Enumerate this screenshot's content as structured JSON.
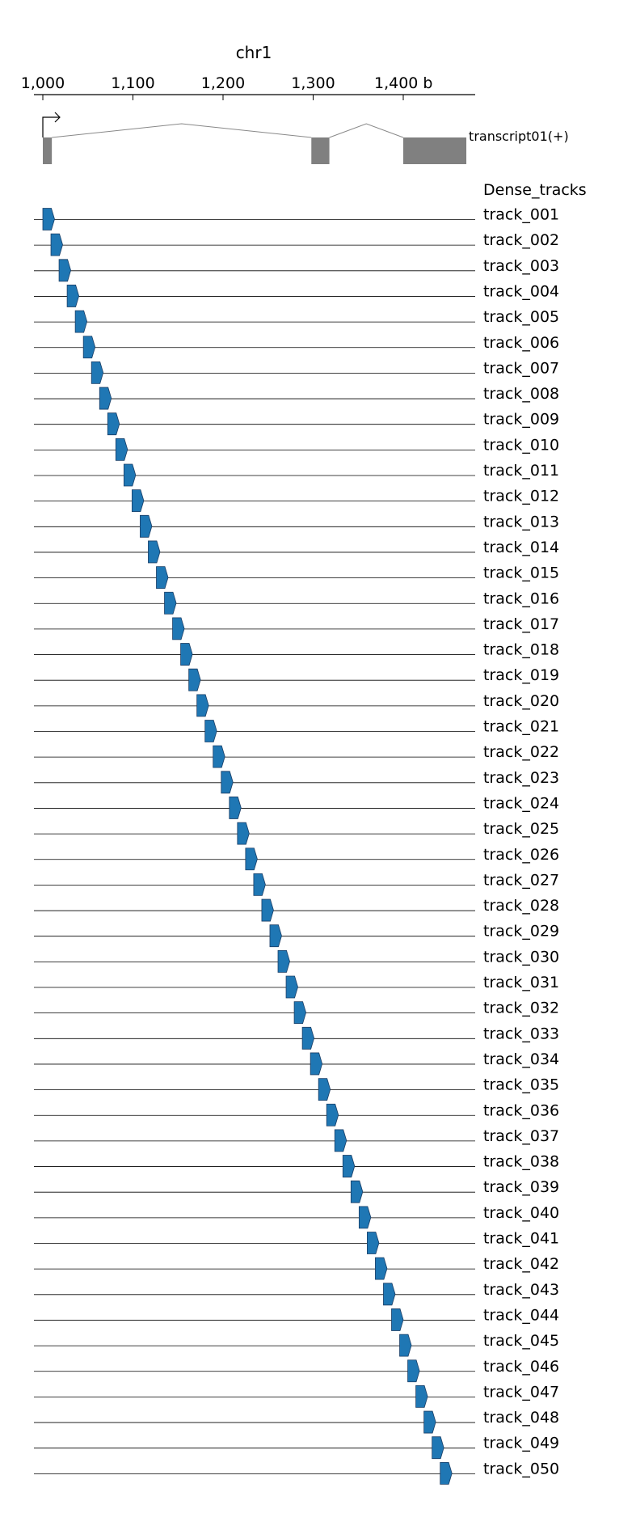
{
  "chromosome": "chr1",
  "axis": {
    "ticks": [
      {
        "pos": 1000,
        "label": "1,000"
      },
      {
        "pos": 1100,
        "label": "1,100"
      },
      {
        "pos": 1200,
        "label": "1,200"
      },
      {
        "pos": 1300,
        "label": "1,300"
      },
      {
        "pos": 1400,
        "label": "1,400 b"
      }
    ],
    "range": [
      990,
      1480
    ]
  },
  "transcript": {
    "name": "transcript01(+)",
    "strand": "+",
    "exons": [
      [
        1000,
        1010
      ],
      [
        1298,
        1318
      ],
      [
        1400,
        1470
      ]
    ]
  },
  "tracks_title": "Dense_tracks",
  "feature_color": "#1f77b4",
  "track_feature_length": 13,
  "tracks": [
    {
      "label": "track_001",
      "start": 1000
    },
    {
      "label": "track_002",
      "start": 1009
    },
    {
      "label": "track_003",
      "start": 1018
    },
    {
      "label": "track_004",
      "start": 1027
    },
    {
      "label": "track_005",
      "start": 1036
    },
    {
      "label": "track_006",
      "start": 1045
    },
    {
      "label": "track_007",
      "start": 1054
    },
    {
      "label": "track_008",
      "start": 1063
    },
    {
      "label": "track_009",
      "start": 1072
    },
    {
      "label": "track_010",
      "start": 1081
    },
    {
      "label": "track_011",
      "start": 1090
    },
    {
      "label": "track_012",
      "start": 1099
    },
    {
      "label": "track_013",
      "start": 1108
    },
    {
      "label": "track_014",
      "start": 1117
    },
    {
      "label": "track_015",
      "start": 1126
    },
    {
      "label": "track_016",
      "start": 1135
    },
    {
      "label": "track_017",
      "start": 1144
    },
    {
      "label": "track_018",
      "start": 1153
    },
    {
      "label": "track_019",
      "start": 1162
    },
    {
      "label": "track_020",
      "start": 1171
    },
    {
      "label": "track_021",
      "start": 1180
    },
    {
      "label": "track_022",
      "start": 1189
    },
    {
      "label": "track_023",
      "start": 1198
    },
    {
      "label": "track_024",
      "start": 1207
    },
    {
      "label": "track_025",
      "start": 1216
    },
    {
      "label": "track_026",
      "start": 1225
    },
    {
      "label": "track_027",
      "start": 1234
    },
    {
      "label": "track_028",
      "start": 1243
    },
    {
      "label": "track_029",
      "start": 1252
    },
    {
      "label": "track_030",
      "start": 1261
    },
    {
      "label": "track_031",
      "start": 1270
    },
    {
      "label": "track_032",
      "start": 1279
    },
    {
      "label": "track_033",
      "start": 1288
    },
    {
      "label": "track_034",
      "start": 1297
    },
    {
      "label": "track_035",
      "start": 1306
    },
    {
      "label": "track_036",
      "start": 1315
    },
    {
      "label": "track_037",
      "start": 1324
    },
    {
      "label": "track_038",
      "start": 1333
    },
    {
      "label": "track_039",
      "start": 1342
    },
    {
      "label": "track_040",
      "start": 1351
    },
    {
      "label": "track_041",
      "start": 1360
    },
    {
      "label": "track_042",
      "start": 1369
    },
    {
      "label": "track_043",
      "start": 1378
    },
    {
      "label": "track_044",
      "start": 1387
    },
    {
      "label": "track_045",
      "start": 1396
    },
    {
      "label": "track_046",
      "start": 1405
    },
    {
      "label": "track_047",
      "start": 1414
    },
    {
      "label": "track_048",
      "start": 1423
    },
    {
      "label": "track_049",
      "start": 1432
    },
    {
      "label": "track_050",
      "start": 1441
    }
  ]
}
